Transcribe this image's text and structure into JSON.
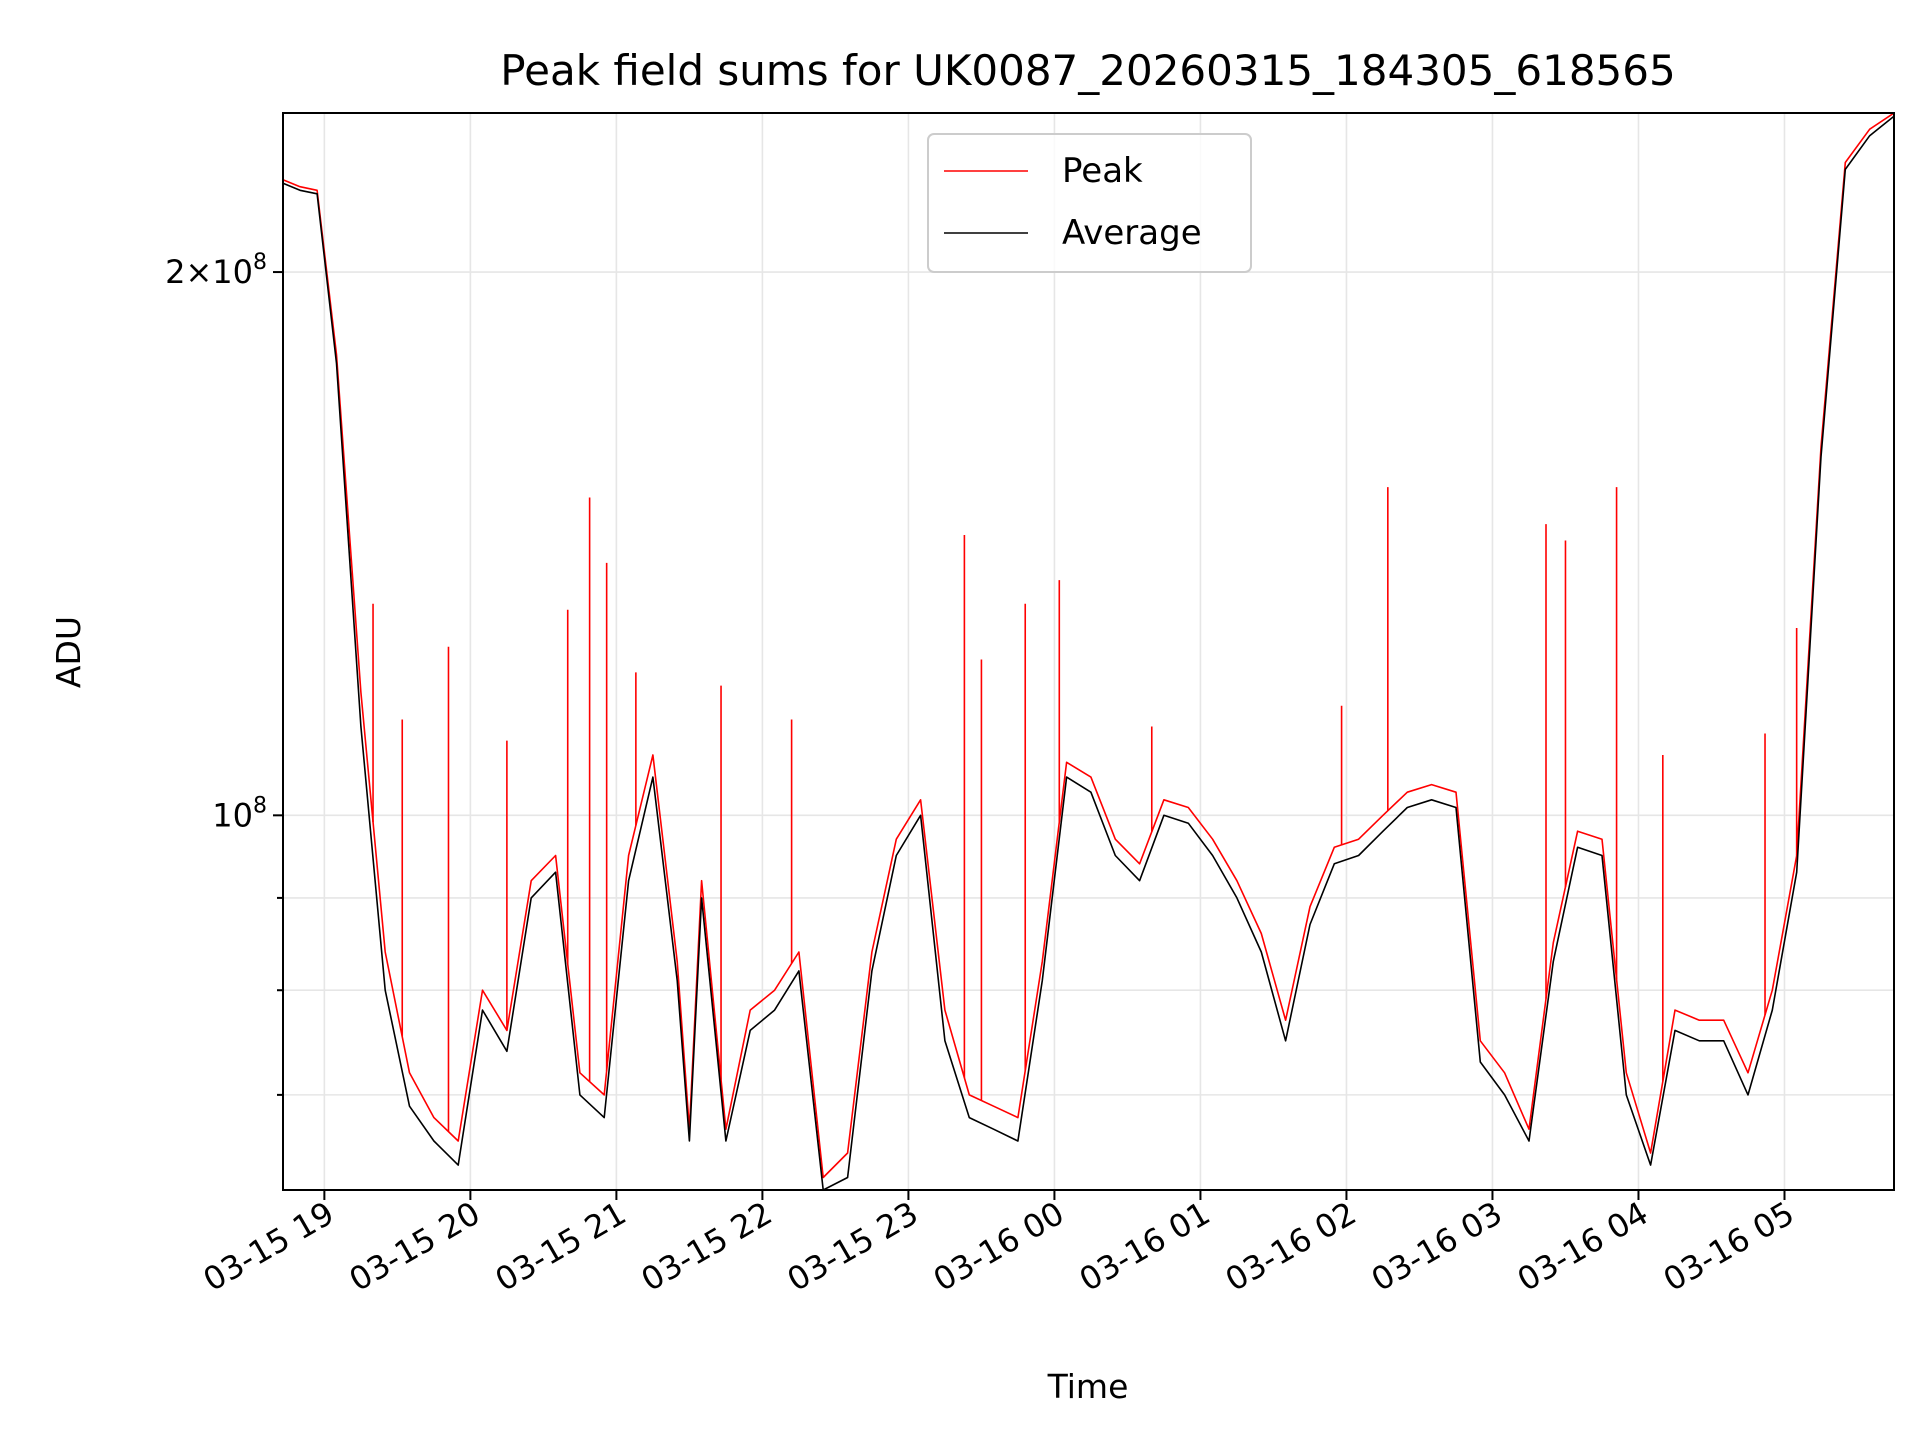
{
  "chart_data": {
    "type": "line",
    "title": "Peak field sums for UK0087_20260315_184305_618565",
    "xlabel": "Time",
    "ylabel": "ADU",
    "yscale": "log",
    "xlim": [
      "2026-03-15 18:43",
      "2026-03-16 05:45"
    ],
    "ylim": [
      62000000,
      245000000
    ],
    "grid": true,
    "legend_position": "upper center",
    "x_tick_labels": [
      "03-15 19",
      "03-15 20",
      "03-15 21",
      "03-15 22",
      "03-15 23",
      "03-16 00",
      "03-16 01",
      "03-16 02",
      "03-16 03",
      "03-16 04",
      "03-16 05"
    ],
    "y_tick_labels": [
      {
        "value": 200000000,
        "mantissa": "2",
        "exponent": "8"
      },
      {
        "value": 100000000,
        "mantissa": "",
        "exponent": "8"
      }
    ],
    "y_minor_ticks": [
      70000000,
      80000000,
      90000000
    ],
    "x": [
      "2026-03-15 18:43",
      "2026-03-15 18:50",
      "2026-03-15 18:57",
      "2026-03-15 19:05",
      "2026-03-15 19:15",
      "2026-03-15 19:25",
      "2026-03-15 19:35",
      "2026-03-15 19:45",
      "2026-03-15 19:55",
      "2026-03-15 20:05",
      "2026-03-15 20:15",
      "2026-03-15 20:25",
      "2026-03-15 20:35",
      "2026-03-15 20:45",
      "2026-03-15 20:55",
      "2026-03-15 21:05",
      "2026-03-15 21:15",
      "2026-03-15 21:25",
      "2026-03-15 21:30",
      "2026-03-15 21:35",
      "2026-03-15 21:45",
      "2026-03-15 21:55",
      "2026-03-15 22:05",
      "2026-03-15 22:15",
      "2026-03-15 22:25",
      "2026-03-15 22:35",
      "2026-03-15 22:45",
      "2026-03-15 22:55",
      "2026-03-15 23:05",
      "2026-03-15 23:15",
      "2026-03-15 23:25",
      "2026-03-15 23:35",
      "2026-03-15 23:45",
      "2026-03-15 23:55",
      "2026-03-16 00:05",
      "2026-03-16 00:15",
      "2026-03-16 00:25",
      "2026-03-16 00:35",
      "2026-03-16 00:45",
      "2026-03-16 00:55",
      "2026-03-16 01:05",
      "2026-03-16 01:15",
      "2026-03-16 01:25",
      "2026-03-16 01:35",
      "2026-03-16 01:45",
      "2026-03-16 01:55",
      "2026-03-16 02:05",
      "2026-03-16 02:15",
      "2026-03-16 02:25",
      "2026-03-16 02:35",
      "2026-03-16 02:45",
      "2026-03-16 02:55",
      "2026-03-16 03:05",
      "2026-03-16 03:15",
      "2026-03-16 03:25",
      "2026-03-16 03:35",
      "2026-03-16 03:45",
      "2026-03-16 03:55",
      "2026-03-16 04:05",
      "2026-03-16 04:15",
      "2026-03-16 04:25",
      "2026-03-16 04:35",
      "2026-03-16 04:45",
      "2026-03-16 04:55",
      "2026-03-16 05:05",
      "2026-03-16 05:15",
      "2026-03-16 05:25",
      "2026-03-16 05:35",
      "2026-03-16 05:45"
    ],
    "series": [
      {
        "name": "Peak",
        "color": "#ff0000",
        "values": [
          225000000,
          223000000,
          222000000,
          180000000,
          117000000,
          84000000,
          72000000,
          68000000,
          66000000,
          80000000,
          76000000,
          92000000,
          95000000,
          72000000,
          70000000,
          95000000,
          108000000,
          83000000,
          67000000,
          92000000,
          67000000,
          78000000,
          80000000,
          84000000,
          63000000,
          65000000,
          84000000,
          97000000,
          102000000,
          78000000,
          70000000,
          69000000,
          68000000,
          83000000,
          107000000,
          105000000,
          97000000,
          94000000,
          102000000,
          101000000,
          97000000,
          92000000,
          86000000,
          77000000,
          89000000,
          96000000,
          97000000,
          100000000,
          103000000,
          104000000,
          103000000,
          75000000,
          72000000,
          67000000,
          85000000,
          98000000,
          97000000,
          72000000,
          65000000,
          78000000,
          77000000,
          77000000,
          72000000,
          80000000,
          95000000,
          160000000,
          230000000,
          240000000,
          245000000
        ],
        "spikes": [
          {
            "x": "2026-03-15 19:20",
            "value": 131000000
          },
          {
            "x": "2026-03-15 19:32",
            "value": 113000000
          },
          {
            "x": "2026-03-15 19:51",
            "value": 124000000
          },
          {
            "x": "2026-03-15 20:15",
            "value": 110000000
          },
          {
            "x": "2026-03-15 20:40",
            "value": 130000000
          },
          {
            "x": "2026-03-15 20:49",
            "value": 150000000
          },
          {
            "x": "2026-03-15 20:56",
            "value": 138000000
          },
          {
            "x": "2026-03-15 21:08",
            "value": 120000000
          },
          {
            "x": "2026-03-15 21:43",
            "value": 118000000
          },
          {
            "x": "2026-03-15 22:12",
            "value": 113000000
          },
          {
            "x": "2026-03-15 23:23",
            "value": 143000000
          },
          {
            "x": "2026-03-15 23:30",
            "value": 122000000
          },
          {
            "x": "2026-03-15 23:48",
            "value": 131000000
          },
          {
            "x": "2026-03-16 00:02",
            "value": 135000000
          },
          {
            "x": "2026-03-16 00:40",
            "value": 112000000
          },
          {
            "x": "2026-03-16 01:58",
            "value": 115000000
          },
          {
            "x": "2026-03-16 02:17",
            "value": 152000000
          },
          {
            "x": "2026-03-16 03:22",
            "value": 145000000
          },
          {
            "x": "2026-03-16 03:30",
            "value": 142000000
          },
          {
            "x": "2026-03-16 03:51",
            "value": 152000000
          },
          {
            "x": "2026-03-16 04:10",
            "value": 108000000
          },
          {
            "x": "2026-03-16 04:52",
            "value": 111000000
          },
          {
            "x": "2026-03-16 05:05",
            "value": 127000000
          }
        ]
      },
      {
        "name": "Average",
        "color": "#000000",
        "values": [
          224000000,
          222000000,
          221000000,
          178000000,
          112000000,
          80000000,
          69000000,
          66000000,
          64000000,
          78000000,
          74000000,
          90000000,
          93000000,
          70000000,
          68000000,
          92000000,
          105000000,
          81000000,
          66000000,
          90000000,
          66000000,
          76000000,
          78000000,
          82000000,
          62000000,
          63000000,
          82000000,
          95000000,
          100000000,
          75000000,
          68000000,
          67000000,
          66000000,
          81000000,
          105000000,
          103000000,
          95000000,
          92000000,
          100000000,
          99000000,
          95000000,
          90000000,
          84000000,
          75000000,
          87000000,
          94000000,
          95000000,
          98000000,
          101000000,
          102000000,
          101000000,
          73000000,
          70000000,
          66000000,
          83000000,
          96000000,
          95000000,
          70000000,
          64000000,
          76000000,
          75000000,
          75000000,
          70000000,
          78000000,
          93000000,
          158000000,
          228000000,
          238000000,
          244000000
        ]
      }
    ]
  }
}
